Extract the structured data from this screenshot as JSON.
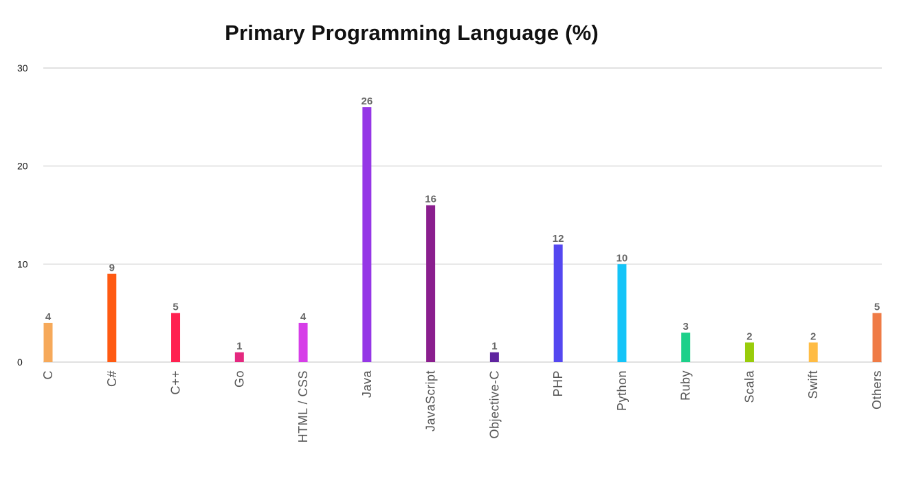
{
  "chart_data": {
    "type": "bar",
    "title": "Primary Programming Language (%)",
    "xlabel": "",
    "ylabel": "",
    "ylim": [
      0,
      30
    ],
    "yticks": [
      0,
      10,
      20,
      30
    ],
    "grid": true,
    "legend": "none",
    "categories": [
      "C",
      "C#",
      "C++",
      "Go",
      "HTML / CSS",
      "Java",
      "JavaScript",
      "Objective-C",
      "PHP",
      "Python",
      "Ruby",
      "Scala",
      "Swift",
      "Others"
    ],
    "values": [
      4,
      9,
      5,
      1,
      4,
      26,
      16,
      1,
      12,
      10,
      3,
      2,
      2,
      5
    ],
    "colors": [
      "#f6a95a",
      "#ff5a12",
      "#ff2150",
      "#e4287f",
      "#d63ee8",
      "#9537e6",
      "#8a1e8e",
      "#5f249f",
      "#5447f0",
      "#14c4f8",
      "#1dd08a",
      "#99cc0a",
      "#ffbc44",
      "#ef7b46"
    ]
  }
}
